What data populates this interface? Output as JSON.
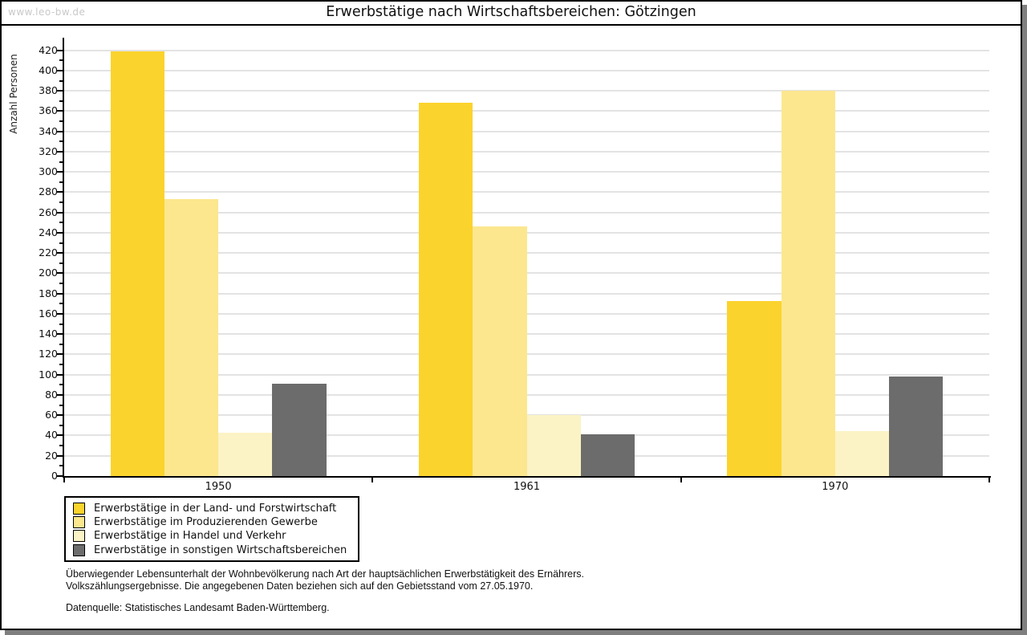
{
  "watermark": "www.leo-bw.de",
  "title": "Erwerbstätige nach Wirtschaftsbereichen: Götzingen",
  "footer": {
    "note_line1": "Überwiegender Lebensunterhalt der Wohnbevölkerung nach Art der hauptsächlichen Erwerbstätigkeit des Ernährers.",
    "note_line2": "Volkszählungsergebnisse. Die angegebenen Daten beziehen sich auf den Gebietsstand vom 27.05.1970.",
    "source": "Datenquelle: Statistisches Landesamt Baden-Württemberg."
  },
  "chart_data": {
    "type": "bar",
    "title": "Erwerbstätige nach Wirtschaftsbereichen: Götzingen",
    "xlabel": "",
    "ylabel": "Anzahl Personen",
    "ylim": [
      0,
      420
    ],
    "ytick_step": 20,
    "yminor_step": 10,
    "grid": true,
    "legend_position": "bottom-left",
    "categories": [
      "1950",
      "1961",
      "1970"
    ],
    "series": [
      {
        "name": "Erwerbstätige in der Land- und Forstwirtschaft",
        "color": "#fbd32d",
        "values": [
          419,
          368,
          173
        ]
      },
      {
        "name": "Erwerbstätige im Produzierenden Gewerbe",
        "color": "#fce78f",
        "values": [
          273,
          246,
          380
        ]
      },
      {
        "name": "Erwerbstätige in Handel und Verkehr",
        "color": "#fbf3c5",
        "values": [
          43,
          60,
          44
        ]
      },
      {
        "name": "Erwerbstätige in sonstigen Wirtschaftsbereichen",
        "color": "#6c6c6c",
        "values": [
          91,
          41,
          98
        ]
      }
    ]
  }
}
